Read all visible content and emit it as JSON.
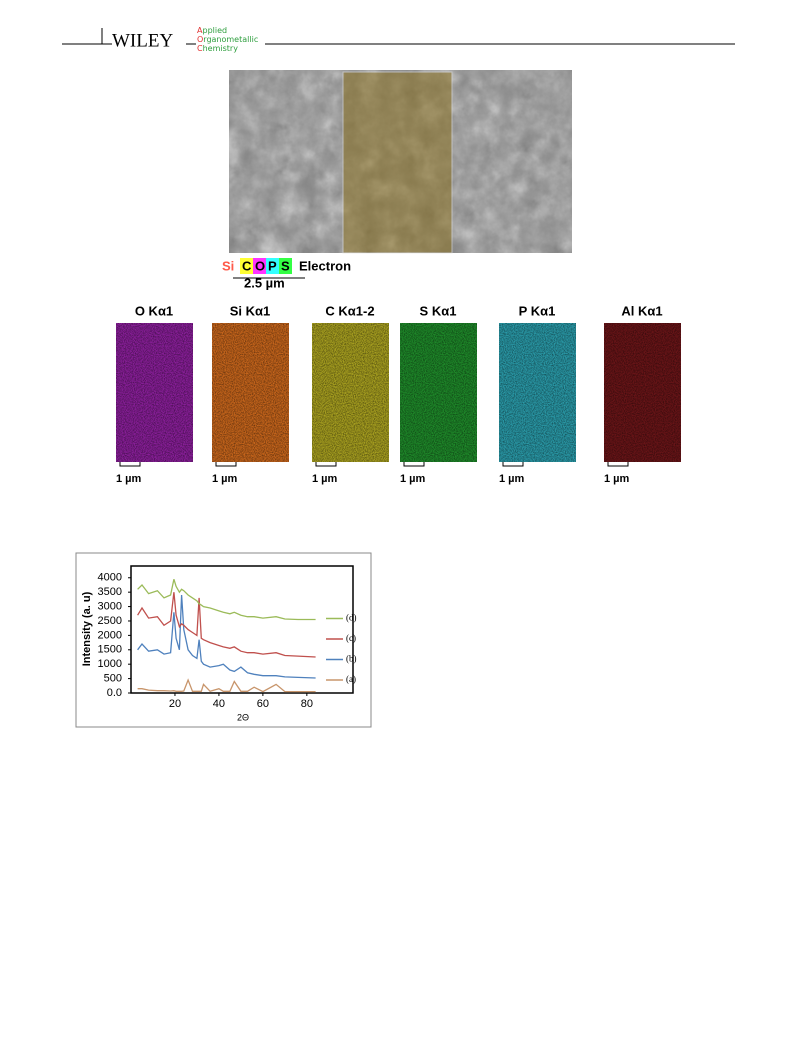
{
  "header": {
    "brand": "WILEY",
    "journal": [
      "Applied",
      "Organometallic",
      "Chemistry"
    ]
  },
  "eds_figure": {
    "labels": [
      {
        "text": "Si",
        "color": "#ff5a4a"
      },
      {
        "text": "C",
        "color": "#ffff33"
      },
      {
        "text": "O",
        "color": "#ff33ff"
      },
      {
        "text": "P",
        "color": "#33ffff"
      },
      {
        "text": "S",
        "color": "#33ff44"
      }
    ],
    "electron": "Electron",
    "scale": "2.5 µm",
    "maps": [
      {
        "title": "O Kα1",
        "scale": "1 µm",
        "color": "#8a1f9a"
      },
      {
        "title": "Si Kα1",
        "scale": "1 µm",
        "color": "#c8661c"
      },
      {
        "title": "C Kα1-2",
        "scale": "1 µm",
        "color": "#a8a020"
      },
      {
        "title": "S Kα1",
        "scale": "1 µm",
        "color": "#1f8a2a"
      },
      {
        "title": "P Kα1",
        "scale": "1 µm",
        "color": "#2a9aa8"
      },
      {
        "title": "Al Kα1",
        "scale": "1 µm",
        "color": "#6a1518"
      }
    ]
  },
  "chart_data": {
    "type": "line",
    "x_label": "2Θ",
    "y_label": "Intensity (a. u)",
    "xlim": [
      0,
      101
    ],
    "ylim": [
      0,
      4200
    ],
    "xticks": [
      20,
      40,
      60,
      80
    ],
    "yticks": [
      {
        "value": 0,
        "label": "0.0"
      },
      500,
      1000,
      1500,
      2000,
      2500,
      3000,
      3500,
      4000
    ],
    "x": [
      3,
      5,
      8,
      12,
      15,
      18,
      19.5,
      20.5,
      22,
      23,
      24,
      26,
      28,
      30,
      31,
      32,
      33,
      36,
      40,
      42,
      45,
      47,
      50,
      53,
      56,
      60,
      66,
      70,
      76,
      84
    ],
    "series": [
      {
        "name": "(a)",
        "color": "#c8956b",
        "values": [
          150,
          150,
          100,
          80,
          80,
          70,
          80,
          60,
          60,
          60,
          70,
          450,
          60,
          60,
          60,
          60,
          300,
          60,
          150,
          60,
          60,
          400,
          60,
          60,
          200,
          50,
          300,
          50,
          50,
          50
        ]
      },
      {
        "name": "(b)",
        "color": "#4f81bd",
        "values": [
          1500,
          1700,
          1450,
          1500,
          1350,
          1400,
          2800,
          1900,
          1500,
          3400,
          2200,
          1500,
          1300,
          1200,
          1850,
          1100,
          1000,
          900,
          950,
          1000,
          800,
          750,
          900,
          700,
          650,
          600,
          600,
          560,
          540,
          520
        ]
      },
      {
        "name": "(c)",
        "color": "#c0504d",
        "values": [
          2700,
          2950,
          2600,
          2650,
          2350,
          2500,
          3500,
          2700,
          2300,
          2400,
          2350,
          2200,
          2100,
          2000,
          3300,
          1900,
          1850,
          1750,
          1650,
          1600,
          1550,
          1600,
          1450,
          1400,
          1400,
          1350,
          1400,
          1300,
          1280,
          1250
        ]
      },
      {
        "name": "(d)",
        "color": "#9bbb59",
        "values": [
          3600,
          3750,
          3450,
          3550,
          3300,
          3400,
          3950,
          3700,
          3500,
          3600,
          3550,
          3400,
          3300,
          3200,
          3100,
          3050,
          3000,
          2950,
          2850,
          2800,
          2750,
          2800,
          2700,
          2650,
          2650,
          2600,
          2650,
          2570,
          2550,
          2550
        ]
      }
    ]
  }
}
